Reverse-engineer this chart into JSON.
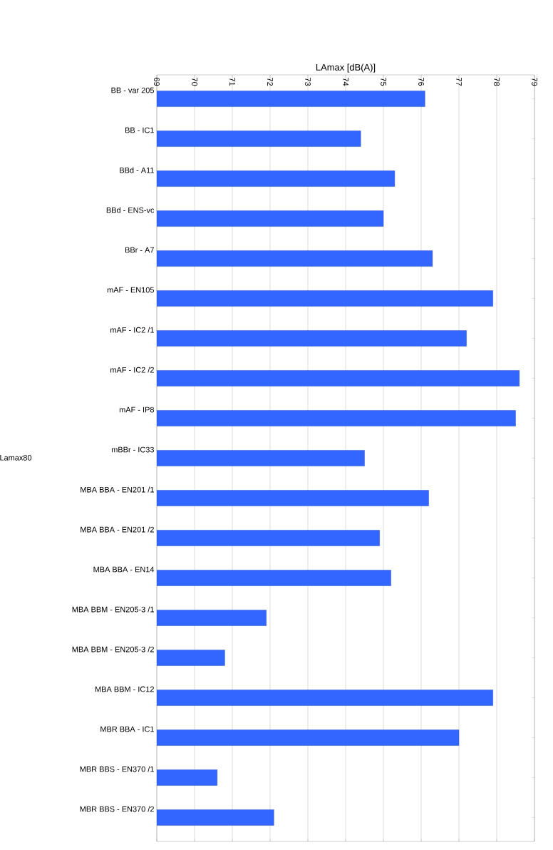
{
  "chart_data": {
    "type": "bar",
    "orientation": "horizontal",
    "xlabel": "LAmax [dB(A)]",
    "categories": [
      "BB - var 205",
      "BB - IC1",
      "BBd - A11",
      "BBd - ENS-vc",
      "BBr - A7",
      "mAF - EN105",
      "mAF - IC2 /1",
      "mAF - IC2 /2",
      "mAF - IP8",
      "mBBr - IC33",
      "MBA BBA - EN201 /1",
      "MBA BBA - EN201 /2",
      "MBA BBA - EN14",
      "MBA BBM - EN205-3 /1",
      "MBA BBM - EN205-3 /2",
      "MBA BBM - IC12",
      "MBR BBA - IC1",
      "MBR BBS - EN370 /1",
      "MBR BBS - EN370 /2"
    ],
    "series": [
      {
        "name": "Lamax80",
        "color": "#3366ff",
        "values": [
          76.1,
          74.4,
          75.3,
          75.0,
          76.3,
          77.9,
          77.2,
          78.6,
          78.5,
          74.5,
          76.2,
          74.9,
          75.2,
          71.9,
          70.8,
          77.9,
          77.0,
          70.6,
          72.1
        ]
      }
    ],
    "xlim": [
      69,
      79
    ],
    "xticks": [
      69,
      70,
      71,
      72,
      73,
      74,
      75,
      76,
      77,
      78,
      79
    ],
    "grid": "x",
    "legend": "left"
  }
}
